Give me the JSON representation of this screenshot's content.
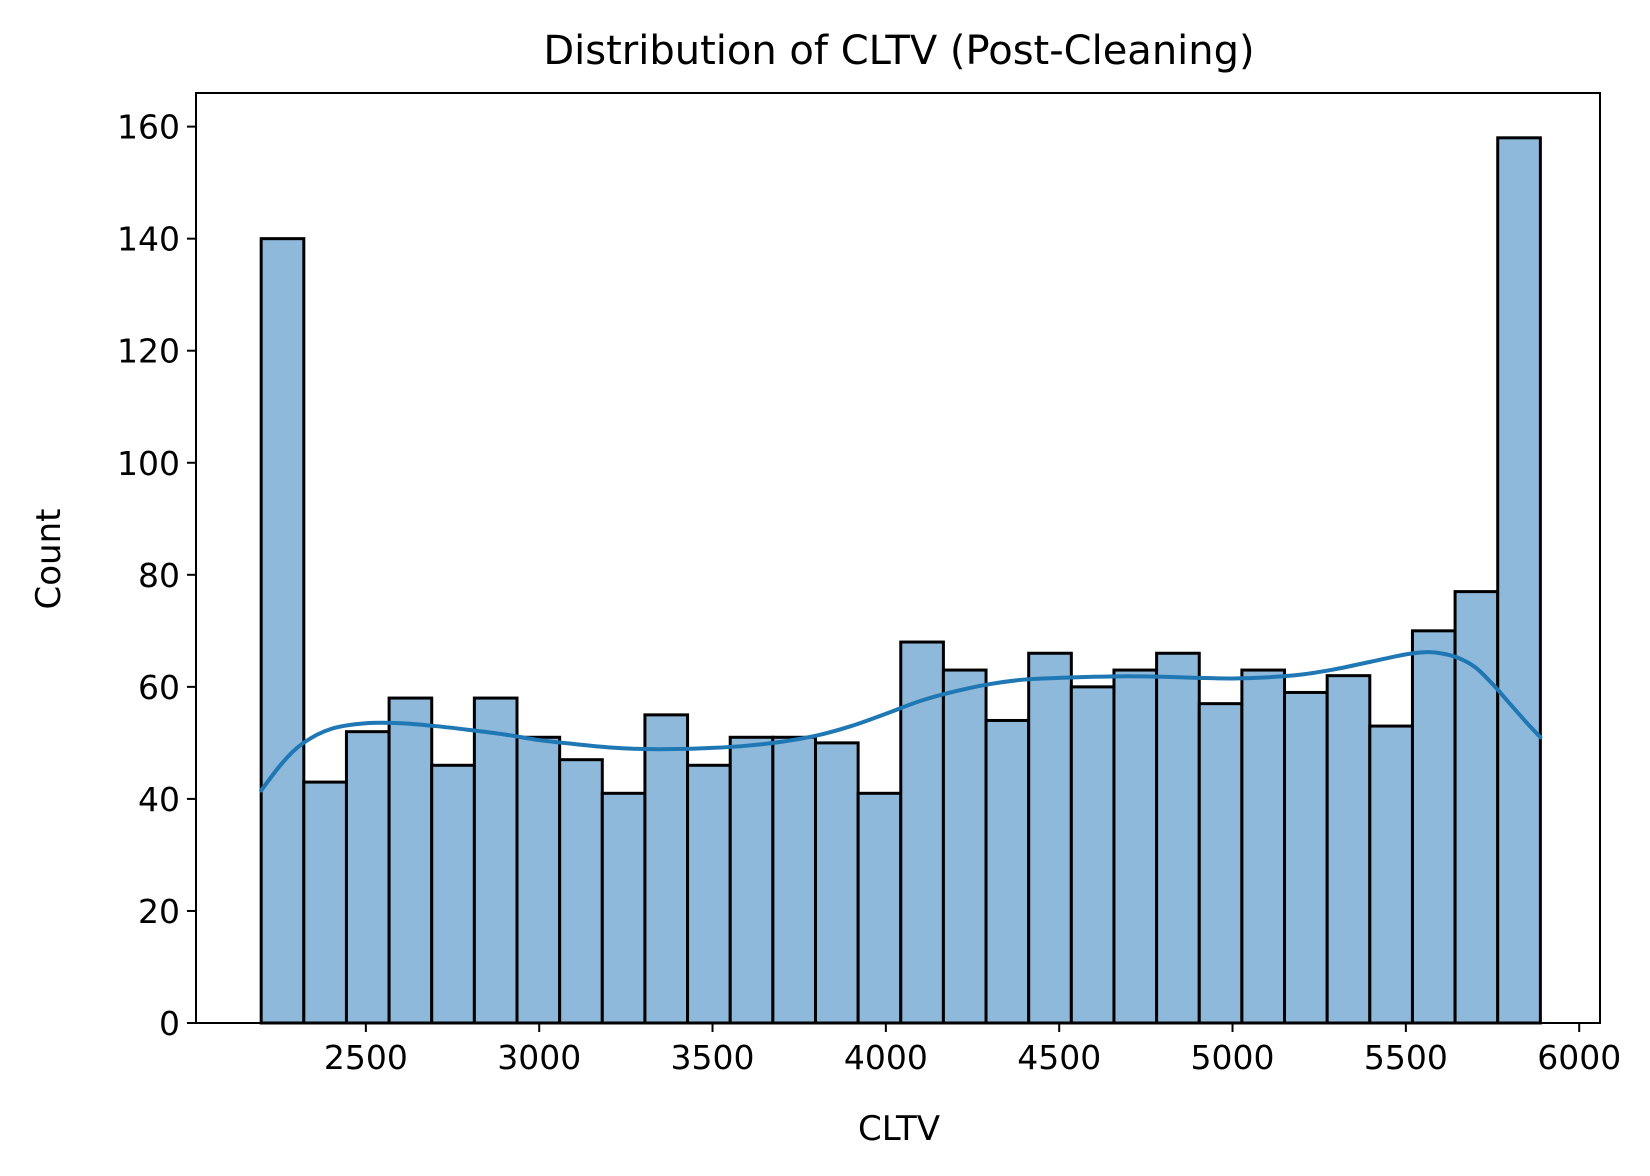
{
  "chart_data": {
    "type": "bar",
    "title": "Distribution of CLTV (Post-Cleaning)",
    "xlabel": "CLTV",
    "ylabel": "Count",
    "xlim": [
      2010,
      6060
    ],
    "ylim": [
      0,
      166
    ],
    "xticks": [
      2500,
      3000,
      3500,
      4000,
      4500,
      5000,
      5500,
      6000
    ],
    "yticks": [
      0,
      20,
      40,
      60,
      80,
      100,
      120,
      140,
      160
    ],
    "grid": false,
    "legend": false,
    "bins": {
      "edges": [
        2198,
        2321,
        2444,
        2567,
        2690,
        2813,
        2936,
        3059,
        3182,
        3305,
        3428,
        3551,
        3674,
        3797,
        3920,
        4043,
        4166,
        4289,
        4412,
        4535,
        4658,
        4781,
        4904,
        5027,
        5150,
        5273,
        5396,
        5519,
        5642,
        5765,
        5888
      ],
      "counts": [
        140,
        43,
        52,
        58,
        46,
        58,
        51,
        47,
        41,
        55,
        46,
        51,
        51,
        50,
        41,
        68,
        63,
        54,
        66,
        60,
        63,
        66,
        57,
        63,
        59,
        62,
        53,
        70,
        77,
        158
      ]
    },
    "kde": {
      "x": [
        2198,
        2260,
        2320,
        2400,
        2500,
        2600,
        2700,
        2800,
        2900,
        3000,
        3100,
        3200,
        3300,
        3400,
        3500,
        3600,
        3700,
        3800,
        3900,
        4000,
        4100,
        4200,
        4300,
        4400,
        4500,
        4600,
        4700,
        4800,
        4900,
        5000,
        5100,
        5200,
        5300,
        5400,
        5500,
        5560,
        5600,
        5650,
        5700,
        5750,
        5800,
        5850,
        5888
      ],
      "y": [
        41.5,
        46.5,
        50,
        52.5,
        53.5,
        53.5,
        53,
        52.3,
        51.5,
        50.5,
        49.8,
        49.2,
        48.9,
        48.9,
        49.1,
        49.5,
        50.2,
        51.3,
        53,
        55.2,
        57.5,
        59.2,
        60.5,
        61.3,
        61.6,
        61.8,
        61.9,
        61.8,
        61.6,
        61.5,
        61.7,
        62.2,
        63.2,
        64.5,
        65.8,
        66.2,
        66,
        65.2,
        63.5,
        60.5,
        57,
        53.5,
        51
      ]
    },
    "colors": {
      "bar_fill": "#8eb9da",
      "bar_edge": "#000000",
      "kde_line": "#1f77b4"
    }
  }
}
